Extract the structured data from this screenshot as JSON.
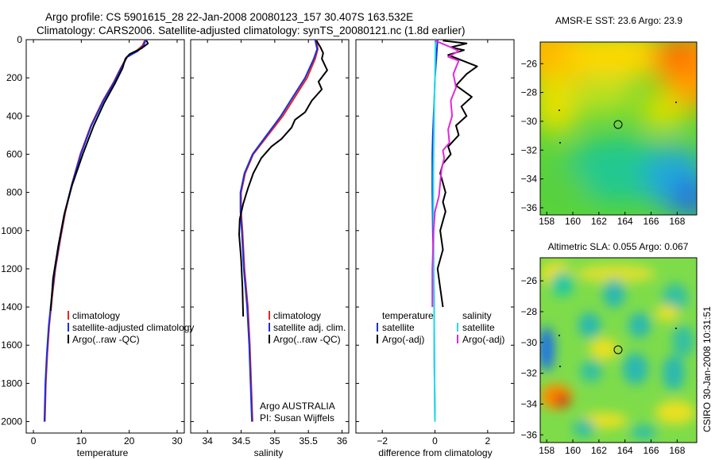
{
  "header": {
    "line1": "Argo profile: CS 5901615_28 22-Jan-2008 20080123_157 30.407S 163.532E",
    "line2": "Climatology: CARS2006. Satellite-adjusted climatology: synTS_20080121.nc (1.8d earlier)"
  },
  "colors": {
    "climatology": "#e8261c",
    "satellite": "#1a2ee0",
    "argo": "#000000",
    "sat_salinity": "#22e0e8",
    "argo_salinity": "#e02ad8"
  },
  "chart_data": [
    {
      "type": "line",
      "name": "temperature",
      "xlabel": "temperature",
      "ylabel": "",
      "xlim": [
        -1.5,
        31.5
      ],
      "ylim": [
        2060,
        0
      ],
      "xticks": [
        0,
        10,
        20,
        30
      ],
      "yticks": [
        0,
        200,
        400,
        600,
        800,
        1000,
        1200,
        1400,
        1600,
        1800,
        2000
      ],
      "series": [
        {
          "name": "climatology",
          "color": "#e8261c",
          "x": [
            23.3,
            22.8,
            21.5,
            19.5,
            18.2,
            16.8,
            14.5,
            12.0,
            9.8,
            8.0,
            6.7,
            5.6,
            4.6,
            3.9,
            3.3,
            2.9,
            2.6,
            2.4
          ],
          "y": [
            0,
            30,
            60,
            90,
            150,
            220,
            320,
            450,
            600,
            760,
            900,
            1050,
            1200,
            1350,
            1500,
            1650,
            1800,
            2000
          ]
        },
        {
          "name": "satellite-adjusted climatology",
          "color": "#1a2ee0",
          "x": [
            23.5,
            23.0,
            21.8,
            19.6,
            18.3,
            16.9,
            14.6,
            12.1,
            9.9,
            8.0,
            6.6,
            5.5,
            4.5,
            3.8,
            3.2,
            2.8,
            2.5,
            2.3
          ],
          "y": [
            0,
            30,
            60,
            90,
            150,
            220,
            320,
            450,
            600,
            760,
            900,
            1050,
            1200,
            1350,
            1500,
            1650,
            1800,
            2000
          ]
        },
        {
          "name": "Argo(..raw -QC)",
          "color": "#000000",
          "x": [
            23.6,
            23.9,
            22.6,
            20.1,
            19.2,
            18.6,
            17.0,
            14.8,
            12.6,
            10.3,
            8.1,
            6.4,
            5.2,
            4.1,
            3.6
          ],
          "y": [
            5,
            20,
            45,
            75,
            100,
            150,
            230,
            330,
            450,
            600,
            760,
            920,
            1080,
            1250,
            1420
          ]
        }
      ],
      "legend": [
        "climatology",
        "satellite-adjusted climatology",
        "Argo(..raw -QC)"
      ]
    },
    {
      "type": "line",
      "name": "salinity",
      "xlabel": "salinity",
      "ylabel": "",
      "xlim": [
        33.75,
        36.1
      ],
      "ylim": [
        2060,
        0
      ],
      "xticks": [
        34,
        34.5,
        35,
        35.5,
        36
      ],
      "xticklabels": [
        "34",
        "34.5",
        "35",
        "35.5",
        "36"
      ],
      "series": [
        {
          "name": "climatology",
          "color": "#e8261c",
          "x": [
            35.62,
            35.64,
            35.6,
            35.48,
            35.3,
            35.12,
            34.9,
            34.68,
            34.56,
            34.5,
            34.5,
            34.52,
            34.55,
            34.6,
            34.63,
            34.65,
            34.67
          ],
          "y": [
            0,
            50,
            100,
            200,
            300,
            400,
            500,
            600,
            700,
            800,
            900,
            1000,
            1200,
            1400,
            1600,
            1800,
            2000
          ]
        },
        {
          "name": "satellite adj. clim.",
          "color": "#1a2ee0",
          "x": [
            35.6,
            35.63,
            35.58,
            35.45,
            35.27,
            35.09,
            34.88,
            34.67,
            34.55,
            34.49,
            34.49,
            34.51,
            34.54,
            34.59,
            34.62,
            34.64,
            34.66
          ],
          "y": [
            0,
            50,
            100,
            200,
            300,
            400,
            500,
            600,
            700,
            800,
            900,
            1000,
            1200,
            1400,
            1600,
            1800,
            2000
          ]
        },
        {
          "name": "Argo(..raw -QC)",
          "color": "#000000",
          "x": [
            35.62,
            35.68,
            35.72,
            35.7,
            35.78,
            35.65,
            35.7,
            35.55,
            35.45,
            35.3,
            35.25,
            35.1,
            34.95,
            34.8,
            34.68,
            34.6,
            34.53,
            34.48,
            34.47,
            34.5,
            34.52,
            34.53
          ],
          "y": [
            5,
            40,
            70,
            100,
            160,
            220,
            260,
            320,
            380,
            420,
            460,
            520,
            560,
            620,
            700,
            780,
            860,
            940,
            1020,
            1150,
            1300,
            1450
          ]
        }
      ],
      "legend": [
        "climatology",
        "satellite adj. clim.",
        "Argo(..raw -QC)"
      ],
      "annotation": {
        "line1": "Argo AUSTRALIA",
        "line2": "PI: Susan Wijffels"
      }
    },
    {
      "type": "line",
      "name": "difference",
      "xlabel": "difference from climatology",
      "ylabel": "",
      "xlim": [
        -3.0,
        3.0
      ],
      "ylim": [
        2060,
        0
      ],
      "xticks": [
        -2,
        0,
        2
      ],
      "series": [
        {
          "name": "temperature satellite",
          "color": "#1a2ee0",
          "x": [
            0.1,
            0.05,
            0.0,
            -0.02,
            -0.05,
            -0.08,
            -0.1,
            -0.1,
            -0.08,
            -0.05,
            -0.03,
            -0.02,
            0.0
          ],
          "y": [
            0,
            100,
            200,
            300,
            400,
            500,
            600,
            800,
            1000,
            1200,
            1400,
            1700,
            2000
          ]
        },
        {
          "name": "temperature Argo(-adj)",
          "color": "#000000",
          "x": [
            0.3,
            1.2,
            0.6,
            1.1,
            0.5,
            1.6,
            1.2,
            0.8,
            1.4,
            1.0,
            1.2,
            0.8,
            0.9,
            0.5,
            0.6,
            0.3,
            0.2,
            0.3,
            0.4,
            0.3,
            0.4,
            0.2,
            0.3,
            0.1,
            0.2,
            0.3
          ],
          "y": [
            5,
            20,
            40,
            55,
            80,
            140,
            180,
            240,
            300,
            350,
            400,
            450,
            500,
            560,
            600,
            650,
            700,
            750,
            800,
            850,
            900,
            1000,
            1100,
            1200,
            1300,
            1400
          ]
        },
        {
          "name": "salinity satellite",
          "color": "#22e0e8",
          "x": [
            0.02,
            0.01,
            0.0,
            -0.02,
            -0.03,
            -0.04,
            -0.05,
            -0.06,
            -0.06,
            -0.05,
            -0.04,
            -0.03,
            -0.02,
            -0.01,
            0.0
          ],
          "y": [
            0,
            100,
            200,
            300,
            400,
            500,
            600,
            700,
            900,
            1100,
            1300,
            1500,
            1700,
            1900,
            2000
          ]
        },
        {
          "name": "salinity Argo(-adj)",
          "color": "#e02ad8",
          "x": [
            0.0,
            0.6,
            0.9,
            0.5,
            0.9,
            0.7,
            0.8,
            0.6,
            0.65,
            0.5,
            0.55,
            0.3,
            0.35,
            0.25,
            0.2,
            0.15,
            0.0,
            -0.05,
            -0.1,
            -0.1
          ],
          "y": [
            5,
            40,
            60,
            90,
            110,
            180,
            250,
            320,
            400,
            470,
            540,
            580,
            620,
            680,
            750,
            820,
            900,
            1000,
            1200,
            1400
          ]
        }
      ],
      "legend_temperature": {
        "title": "temperature",
        "items": [
          "satellite",
          "Argo(-adj)"
        ]
      },
      "legend_salinity": {
        "title": "salinity",
        "items": [
          "satellite",
          "Argo(-adj)"
        ]
      }
    },
    {
      "type": "heatmap",
      "name": "sst_map",
      "title": "AMSR-E SST: 23.6 Argo: 23.9",
      "xlim": [
        157.5,
        169.5
      ],
      "ylim": [
        -36.5,
        -24.5
      ],
      "xticks": [
        158,
        160,
        162,
        164,
        166,
        168
      ],
      "yticks": [
        -26,
        -28,
        -30,
        -32,
        -34,
        -36
      ],
      "marker": {
        "lon": 163.532,
        "lat": -30.407
      }
    },
    {
      "type": "heatmap",
      "name": "sla_map",
      "title": "Altimetric SLA: 0.055 Argo: 0.067",
      "xlim": [
        157.5,
        169.5
      ],
      "ylim": [
        -36.5,
        -24.5
      ],
      "xticks": [
        158,
        160,
        162,
        164,
        166,
        168
      ],
      "yticks": [
        -26,
        -28,
        -30,
        -32,
        -34,
        -36
      ],
      "marker": {
        "lon": 163.532,
        "lat": -30.407
      }
    }
  ],
  "stamp": "CSIRO 30-Jan-2008 10:31:51"
}
